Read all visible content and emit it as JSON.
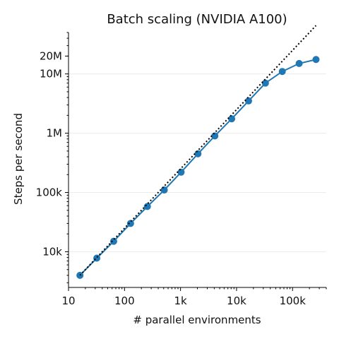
{
  "chart_data": {
    "type": "line",
    "title": "Batch scaling (NVIDIA A100)",
    "xlabel": "# parallel environments",
    "ylabel": "Steps per second",
    "xscale": "log",
    "yscale": "log",
    "xlim": [
      10,
      400000
    ],
    "ylim": [
      2500,
      50000000
    ],
    "grid": "horizontal",
    "x_ticks": [
      {
        "value": 10,
        "label": "10"
      },
      {
        "value": 100,
        "label": "100"
      },
      {
        "value": 1000,
        "label": "1k"
      },
      {
        "value": 10000,
        "label": "10k"
      },
      {
        "value": 100000,
        "label": "100k"
      }
    ],
    "y_ticks": [
      {
        "value": 10000,
        "label": "10k"
      },
      {
        "value": 100000,
        "label": "100k"
      },
      {
        "value": 1000000,
        "label": "1M"
      },
      {
        "value": 10000000,
        "label": "10M"
      },
      {
        "value": 20000000,
        "label": "20M"
      }
    ],
    "y_grid_values": [
      10000,
      100000,
      1000000,
      10000000
    ],
    "series": [
      {
        "style": "solid-markers",
        "color": "#1f77b4",
        "x": [
          16,
          32,
          64,
          128,
          256,
          512,
          1024,
          2048,
          4096,
          8192,
          16384,
          32768,
          65536,
          131072,
          262144
        ],
        "y": [
          4000,
          7800,
          15000,
          30000,
          58000,
          110000,
          220000,
          450000,
          900000,
          1750000,
          3500000,
          7000000,
          11000000,
          15000000,
          17500000
        ]
      },
      {
        "style": "dotted",
        "color": "#000000",
        "x": [
          16,
          262144
        ],
        "y": [
          4000,
          65500000
        ]
      }
    ]
  }
}
